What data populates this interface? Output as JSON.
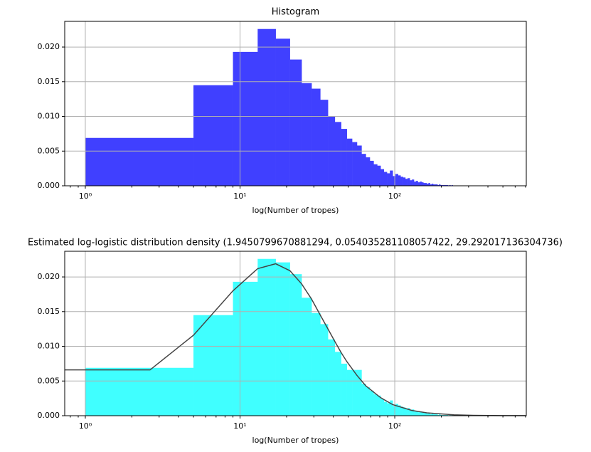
{
  "chart_data": [
    {
      "type": "histogram",
      "title": "Histogram",
      "xlabel": "log(Number of tropes)",
      "xscale": "log",
      "grid": true,
      "color": "#4040ff",
      "bins": [
        1,
        5,
        9,
        13,
        17,
        21,
        25,
        29,
        33,
        37,
        41,
        45,
        49,
        53,
        57,
        61,
        65,
        69,
        73,
        77,
        81,
        85,
        89,
        93,
        97,
        101,
        105,
        109,
        113,
        117,
        121,
        125,
        129,
        133,
        137,
        141,
        145,
        149,
        153,
        157,
        161,
        165,
        169,
        173,
        177,
        181,
        185,
        189,
        193,
        197,
        201,
        205,
        209,
        213,
        217,
        221,
        225,
        229,
        233,
        237,
        241
      ],
      "values": [
        0.0069,
        0.0145,
        0.0193,
        0.0226,
        0.0212,
        0.0182,
        0.0148,
        0.014,
        0.0124,
        0.01,
        0.0092,
        0.0082,
        0.0068,
        0.0063,
        0.0058,
        0.0046,
        0.0041,
        0.0036,
        0.0031,
        0.0029,
        0.0024,
        0.002,
        0.0018,
        0.0022,
        0.0014,
        0.0017,
        0.0015,
        0.0013,
        0.0012,
        0.001,
        0.0011,
        0.0008,
        0.0009,
        0.0006,
        0.0007,
        0.0005,
        0.0006,
        0.0005,
        0.0004,
        0.0004,
        0.0003,
        0.0004,
        0.0002,
        0.0003,
        0.0002,
        0.0002,
        0.0002,
        0.0001,
        0.0002,
        0.0001,
        0.0001,
        0.0001,
        0.0001,
        0.0001,
        0.0001,
        0,
        0.0001,
        0,
        0.0001,
        0
      ],
      "xlim": [
        0.736,
        708
      ],
      "ylim": [
        0,
        0.0237
      ],
      "xticks": [
        {
          "value": 1,
          "label": "10⁰"
        },
        {
          "value": 10,
          "label": "10¹"
        },
        {
          "value": 100,
          "label": "10²"
        }
      ],
      "xminorticks": [
        0.8,
        0.9,
        2,
        3,
        4,
        5,
        6,
        7,
        8,
        9,
        20,
        30,
        40,
        50,
        60,
        70,
        80,
        90,
        200,
        300,
        400,
        500,
        600,
        700
      ],
      "yticks": [
        {
          "value": 0,
          "label": "0.000"
        },
        {
          "value": 0.005,
          "label": "0.005"
        },
        {
          "value": 0.01,
          "label": "0.010"
        },
        {
          "value": 0.015,
          "label": "0.015"
        },
        {
          "value": 0.02,
          "label": "0.020"
        }
      ]
    },
    {
      "type": "histogram",
      "title": "Estimated log-logistic distribution density (1.9450799670881294, 0.054035281108057422, 29.292017136304736)",
      "xlabel": "log(Number of tropes)",
      "xscale": "log",
      "grid": true,
      "color": "#40ffff",
      "bins": [
        1,
        5,
        9,
        13,
        17,
        21,
        25,
        29,
        33,
        37,
        41,
        45,
        49,
        53,
        57,
        61,
        65,
        69,
        73,
        77,
        81,
        85,
        89,
        93,
        97,
        101,
        105,
        109,
        113,
        117,
        121,
        125,
        129,
        133,
        137,
        141,
        145,
        149,
        153,
        157,
        161,
        165,
        169,
        173,
        177,
        181,
        185,
        189,
        193,
        197,
        201,
        205,
        209,
        213,
        217,
        221,
        225,
        229,
        233,
        237,
        241
      ],
      "values": [
        0.0069,
        0.0145,
        0.0193,
        0.0226,
        0.0221,
        0.0204,
        0.017,
        0.0148,
        0.0132,
        0.011,
        0.0092,
        0.0075,
        0.0066,
        0.0066,
        0.0066,
        0.0046,
        0.0041,
        0.0036,
        0.0031,
        0.0029,
        0.0024,
        0.002,
        0.0018,
        0.0022,
        0.0014,
        0.0017,
        0.0015,
        0.0013,
        0.0012,
        0.001,
        0.0011,
        0.0008,
        0.0009,
        0.0006,
        0.0007,
        0.0005,
        0.0006,
        0.0005,
        0.0004,
        0.0004,
        0.0003,
        0.0004,
        0.0002,
        0.0003,
        0.0002,
        0.0002,
        0.0002,
        0.0001,
        0.0002,
        0.0001,
        0.0001,
        0.0001,
        0.0001,
        0.0001,
        0.0001,
        0,
        0.0001,
        0,
        0.0001,
        0
      ],
      "line": {
        "color": "#444444",
        "x": [
          0.736,
          2.62,
          5,
          9,
          13,
          17,
          21,
          25,
          29,
          33,
          37,
          41,
          45,
          49,
          57,
          65,
          81,
          97,
          129,
          161,
          241,
          321,
          500,
          700
        ],
        "values": [
          0.0066,
          0.0066,
          0.0116,
          0.018,
          0.0212,
          0.0219,
          0.0209,
          0.019,
          0.0168,
          0.0145,
          0.0125,
          0.0107,
          0.0091,
          0.0078,
          0.0058,
          0.0043,
          0.0026,
          0.0016,
          0.00076,
          0.00041,
          0.00013,
          5.6e-05,
          1.6e-05,
          7e-06
        ]
      },
      "xlim": [
        0.736,
        708
      ],
      "ylim": [
        0,
        0.0237
      ],
      "xticks": [
        {
          "value": 1,
          "label": "10⁰"
        },
        {
          "value": 10,
          "label": "10¹"
        },
        {
          "value": 100,
          "label": "10²"
        }
      ],
      "xminorticks": [
        0.8,
        0.9,
        2,
        3,
        4,
        5,
        6,
        7,
        8,
        9,
        20,
        30,
        40,
        50,
        60,
        70,
        80,
        90,
        200,
        300,
        400,
        500,
        600,
        700
      ],
      "yticks": [
        {
          "value": 0,
          "label": "0.000"
        },
        {
          "value": 0.005,
          "label": "0.005"
        },
        {
          "value": 0.01,
          "label": "0.010"
        },
        {
          "value": 0.015,
          "label": "0.015"
        },
        {
          "value": 0.02,
          "label": "0.020"
        }
      ]
    }
  ]
}
